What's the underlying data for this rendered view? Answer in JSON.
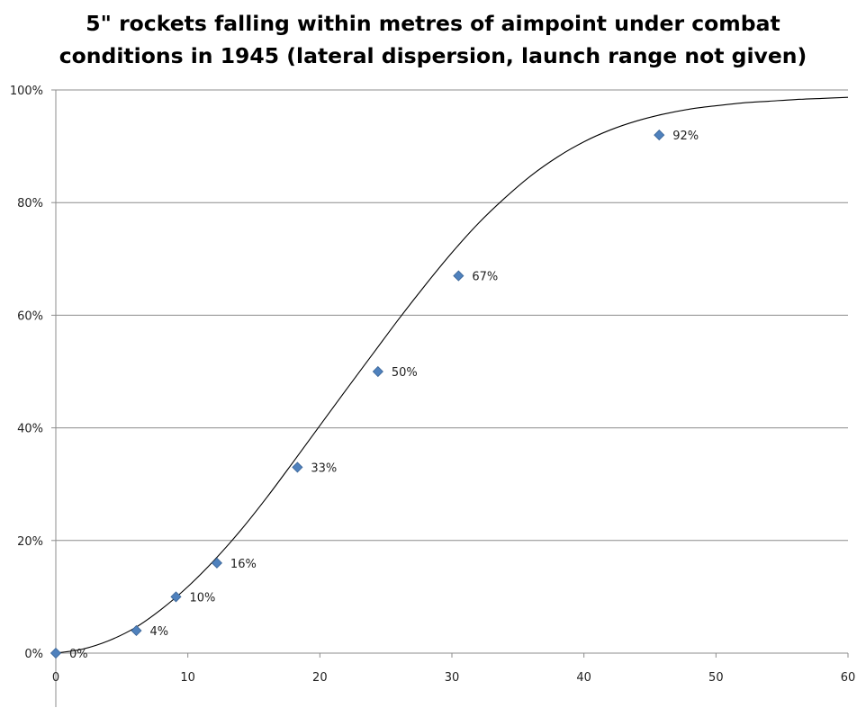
{
  "chart_data": {
    "type": "scatter",
    "title_lines": [
      "5\" rockets falling within metres of aimpoint under combat",
      "conditions in 1945 (lateral dispersion, launch range not given)"
    ],
    "xlabel": "",
    "ylabel": "",
    "xlim": [
      0,
      60
    ],
    "ylim": [
      0,
      1
    ],
    "x_ticks": [
      0,
      10,
      20,
      30,
      40,
      50,
      60
    ],
    "x_tick_labels": [
      "0",
      "10",
      "20",
      "30",
      "40",
      "50",
      "60"
    ],
    "y_ticks": [
      0,
      0.2,
      0.4,
      0.6,
      0.8,
      1.0
    ],
    "y_tick_labels": [
      "0%",
      "20%",
      "40%",
      "60%",
      "80%",
      "100%"
    ],
    "grid": "horizontal",
    "legend": "none",
    "marker": "diamond",
    "marker_color": "#4f81bd",
    "curve_color": "#000000",
    "series": [
      {
        "x": [
          0,
          6.1,
          9.1,
          12.2,
          18.3,
          24.4,
          30.5,
          45.7
        ],
        "y": [
          0,
          0.04,
          0.1,
          0.16,
          0.33,
          0.5,
          0.67,
          0.92
        ],
        "labels": [
          "0%",
          "4%",
          "10%",
          "16%",
          "33%",
          "50%",
          "67%",
          "92%"
        ]
      }
    ],
    "fit_curve": {
      "x": [
        0,
        2,
        4,
        6,
        8,
        10,
        12,
        14,
        16,
        18,
        20,
        22,
        24,
        26,
        28,
        30,
        32,
        34,
        36,
        38,
        40,
        42,
        44,
        46,
        48,
        50,
        52,
        54,
        56,
        58,
        60
      ],
      "y": [
        0,
        0.007,
        0.022,
        0.045,
        0.078,
        0.118,
        0.165,
        0.218,
        0.277,
        0.34,
        0.404,
        0.468,
        0.531,
        0.594,
        0.654,
        0.711,
        0.763,
        0.808,
        0.848,
        0.881,
        0.908,
        0.929,
        0.945,
        0.957,
        0.966,
        0.972,
        0.977,
        0.98,
        0.983,
        0.985,
        0.987
      ]
    }
  }
}
